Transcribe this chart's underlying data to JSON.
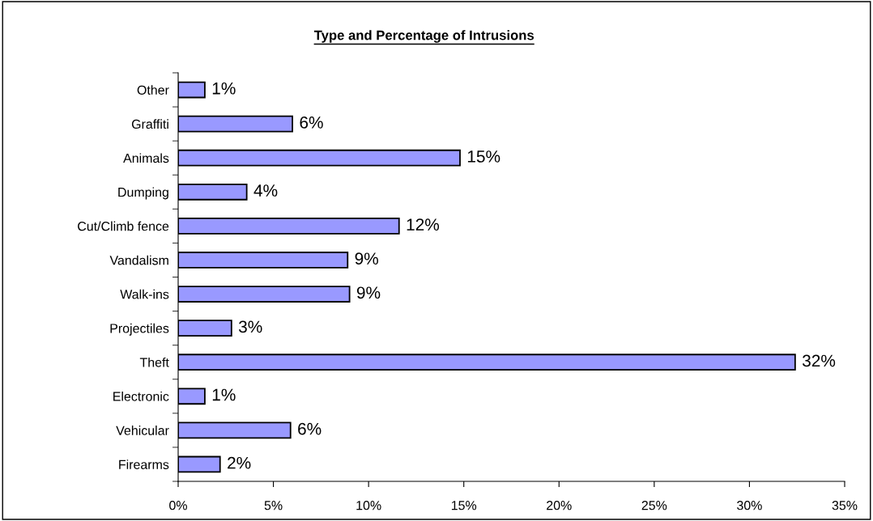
{
  "chart_data": {
    "type": "bar",
    "orientation": "horizontal",
    "title": "Type and Percentage of Intrusions",
    "categories": [
      "Other",
      "Graffiti",
      "Animals",
      "Dumping",
      "Cut/Climb fence",
      "Vandalism",
      "Walk-ins",
      "Projectiles",
      "Theft",
      "Electronic",
      "Vehicular",
      "Firearms"
    ],
    "values": [
      1.4,
      6.0,
      14.8,
      3.6,
      11.6,
      8.9,
      9.0,
      2.8,
      32.4,
      1.4,
      5.9,
      2.2
    ],
    "value_labels": [
      "1%",
      "6%",
      "15%",
      "4%",
      "12%",
      "9%",
      "9%",
      "3%",
      "32%",
      "1%",
      "6%",
      "2%"
    ],
    "color": "#9999ff",
    "xlim": [
      0,
      35
    ],
    "xticks": [
      {
        "value": 0,
        "label": "0%"
      },
      {
        "value": 5,
        "label": "5%"
      },
      {
        "value": 10,
        "label": "10%"
      },
      {
        "value": 15,
        "label": "15%"
      },
      {
        "value": 20,
        "label": "20%"
      },
      {
        "value": 25,
        "label": "25%"
      },
      {
        "value": 30,
        "label": "30%"
      },
      {
        "value": 35,
        "label": "35%"
      }
    ],
    "grid": false,
    "legend": false
  }
}
